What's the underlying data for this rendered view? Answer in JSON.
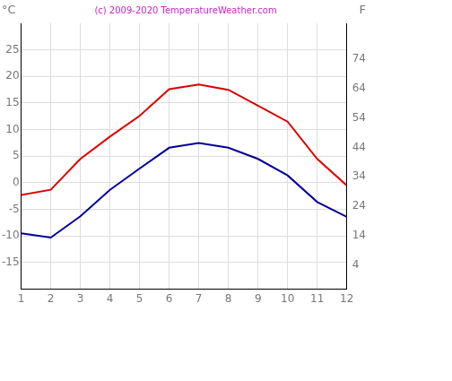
{
  "chart_data": {
    "type": "line",
    "title": "(c) 2009-2020 TemperatureWeather.com",
    "ylabel": "°C",
    "y2label": "F",
    "x": [
      1,
      2,
      3,
      4,
      5,
      6,
      7,
      8,
      9,
      10,
      11,
      12
    ],
    "xlim": [
      1,
      12
    ],
    "xticks": [
      1,
      2,
      3,
      4,
      5,
      6,
      7,
      8,
      9,
      10,
      11,
      12
    ],
    "ylim": [
      -20,
      30
    ],
    "yticks": [
      -15,
      -10,
      -5,
      0,
      5,
      10,
      15,
      20,
      25
    ],
    "y2lim": [
      -4,
      86
    ],
    "y2ticks": [
      4,
      14,
      24,
      34,
      44,
      54,
      64,
      74
    ],
    "grid": true,
    "series": [
      {
        "color": "#dd0000",
        "values": [
          -2.3,
          -1.3,
          4.5,
          8.7,
          12.6,
          17.6,
          18.5,
          17.5,
          14.5,
          11.5,
          4.5,
          -0.5
        ]
      },
      {
        "color": "#000099",
        "values": [
          -9.5,
          -10.3,
          -6.3,
          -1.3,
          2.7,
          6.6,
          7.5,
          6.6,
          4.5,
          1.4,
          -3.6,
          -6.4
        ]
      }
    ]
  }
}
